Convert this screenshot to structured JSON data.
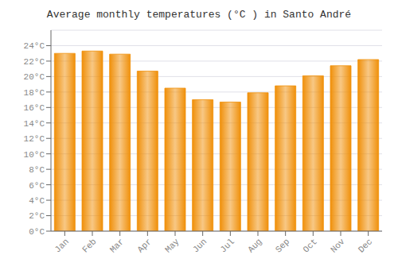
{
  "chart_data": {
    "type": "bar",
    "title": "Average monthly temperatures (°C ) in Santo André",
    "categories": [
      "Jan",
      "Feb",
      "Mar",
      "Apr",
      "May",
      "Jun",
      "Jul",
      "Aug",
      "Sep",
      "Oct",
      "Nov",
      "Dec"
    ],
    "values": [
      23.0,
      23.3,
      22.9,
      20.7,
      18.5,
      17.0,
      16.7,
      17.9,
      18.8,
      20.1,
      21.4,
      22.2
    ],
    "color": "#F0900A",
    "ylim": [
      0,
      26
    ],
    "yticks": [
      {
        "value": 0,
        "label": "0°C"
      },
      {
        "value": 2,
        "label": "2°C"
      },
      {
        "value": 4,
        "label": "4°C"
      },
      {
        "value": 6,
        "label": "6°C"
      },
      {
        "value": 8,
        "label": "8°C"
      },
      {
        "value": 10,
        "label": "10°C"
      },
      {
        "value": 12,
        "label": "12°C"
      },
      {
        "value": 14,
        "label": "14°C"
      },
      {
        "value": 16,
        "label": "16°C"
      },
      {
        "value": 18,
        "label": "18°C"
      },
      {
        "value": 20,
        "label": "20°C"
      },
      {
        "value": 22,
        "label": "22°C"
      },
      {
        "value": 24,
        "label": "24°C"
      }
    ],
    "grid": true
  }
}
